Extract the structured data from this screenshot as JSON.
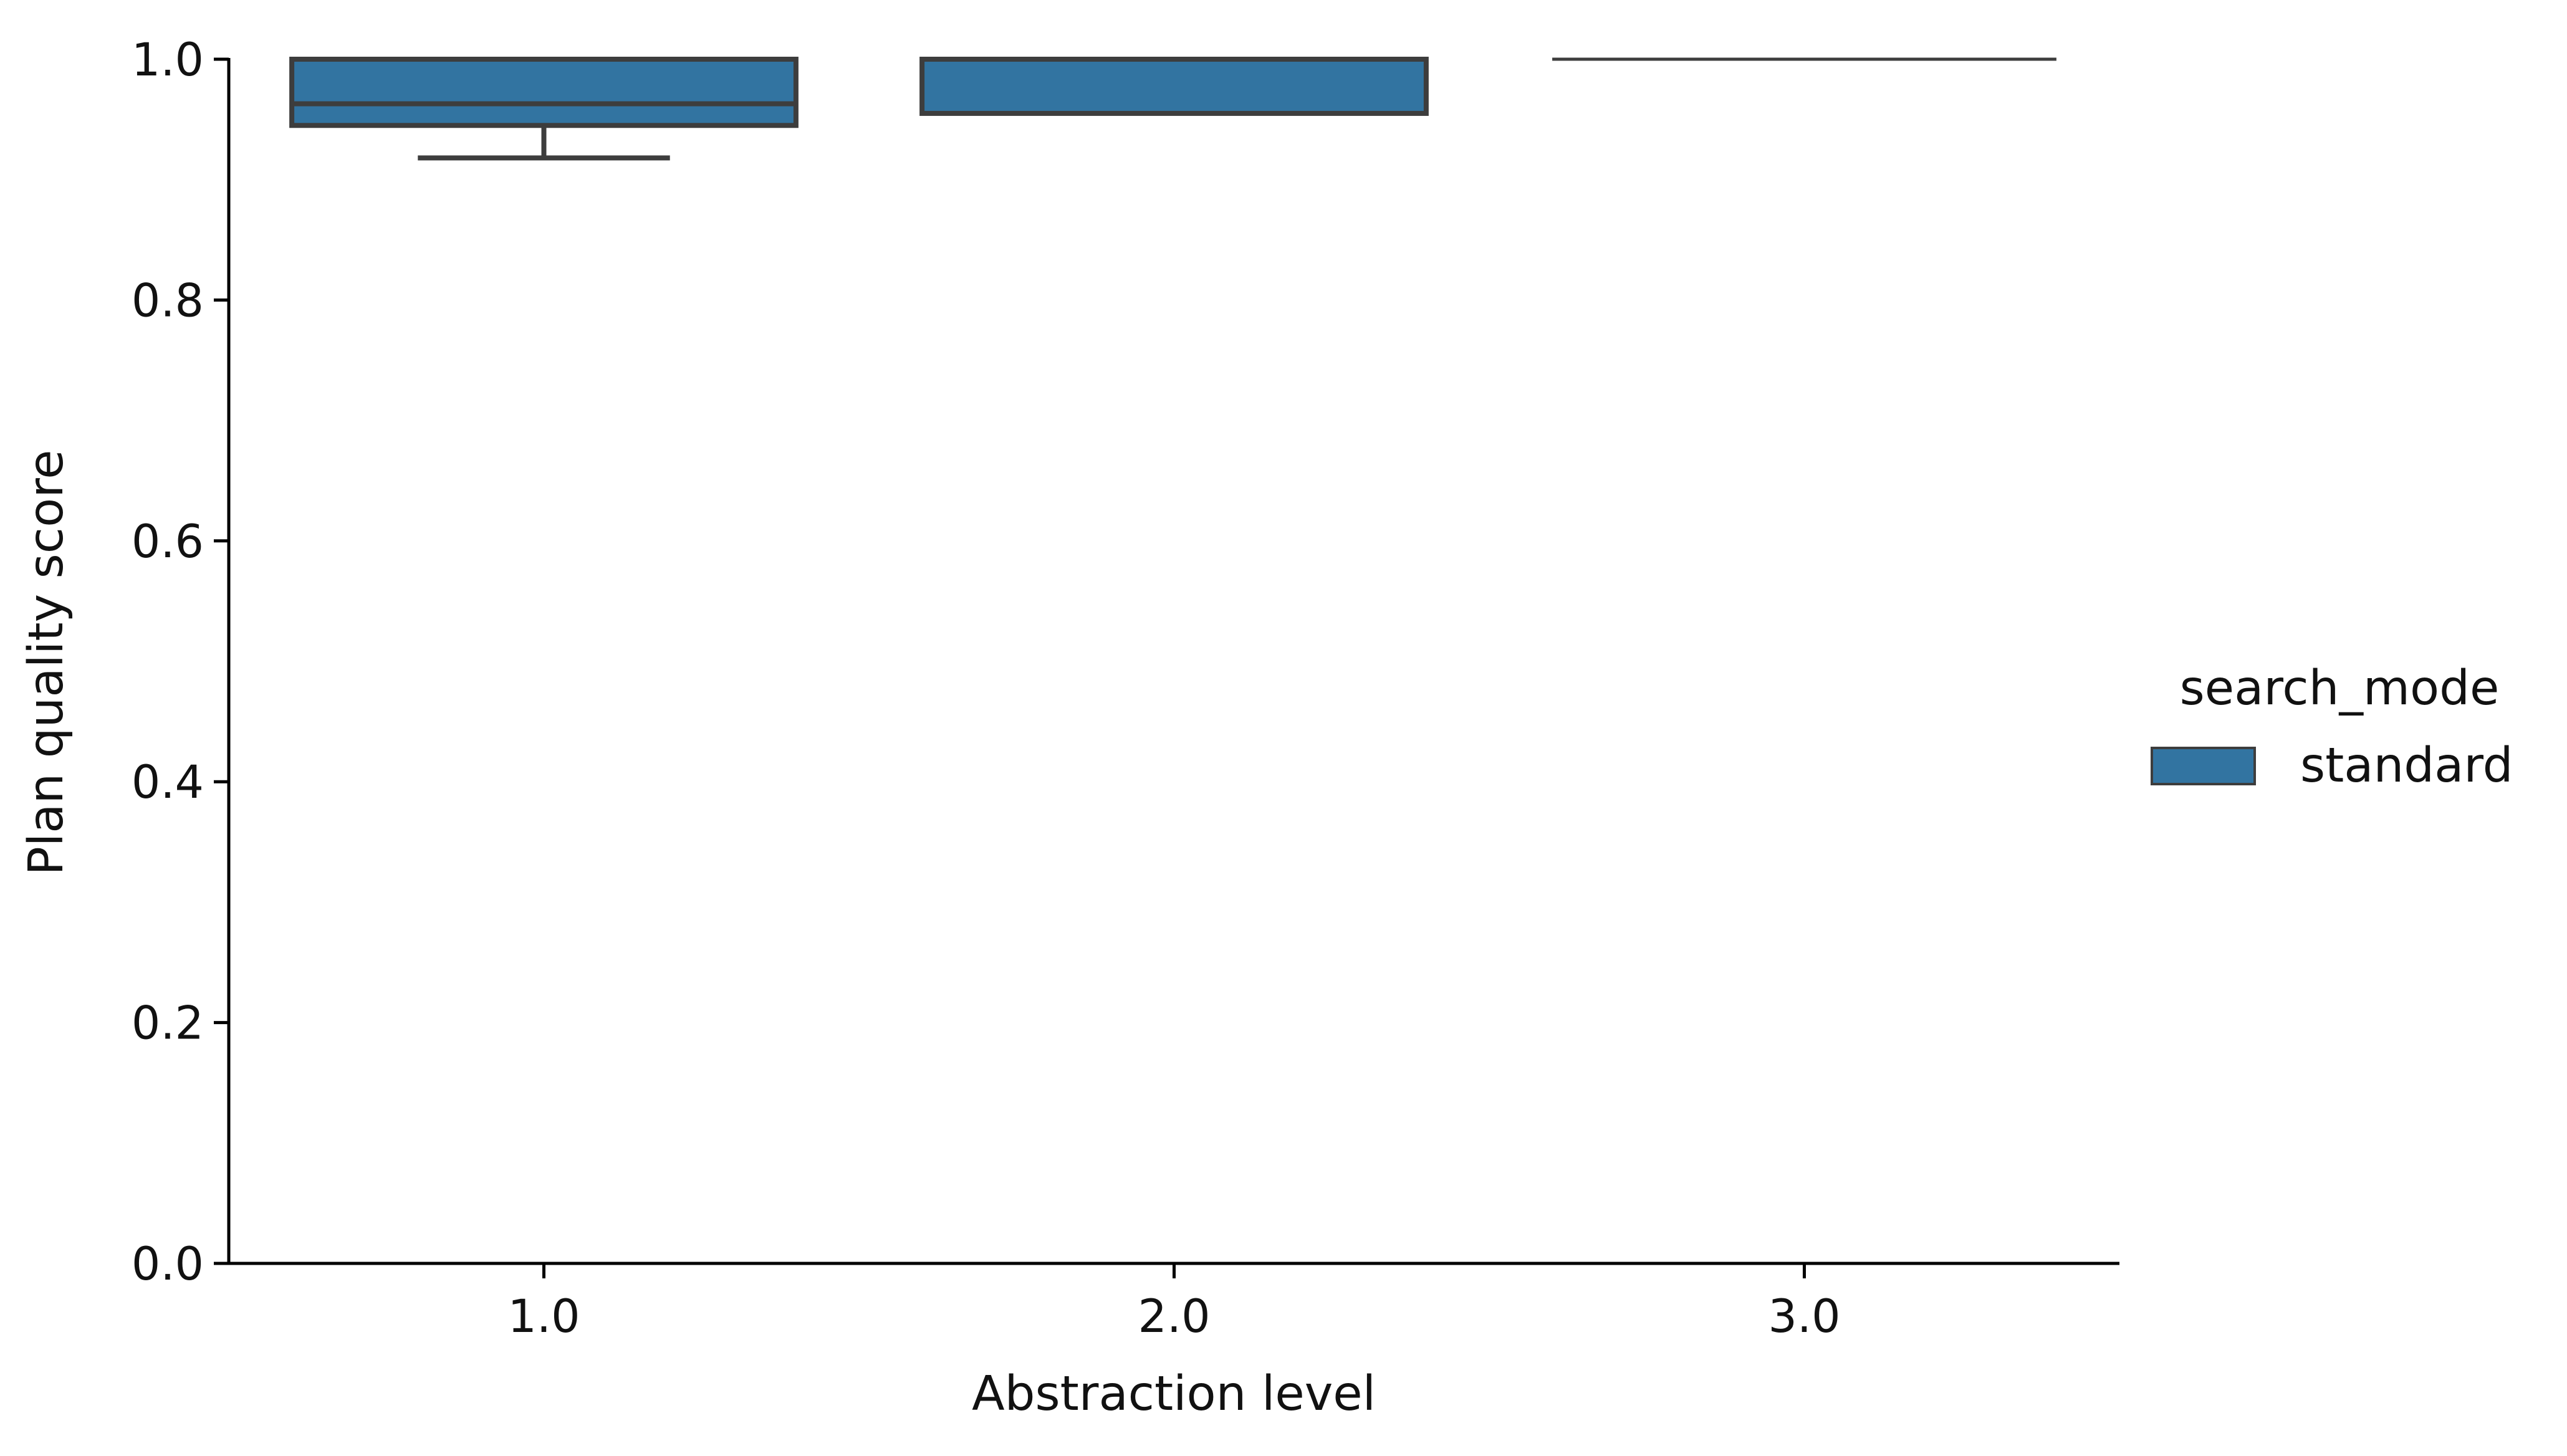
{
  "chart_data": {
    "type": "box",
    "title": "",
    "xlabel": "Abstraction level",
    "ylabel": "Plan quality score",
    "categories": [
      "1.0",
      "2.0",
      "3.0"
    ],
    "ylim": [
      0.0,
      1.0
    ],
    "yticks": [
      "0.0",
      "0.2",
      "0.4",
      "0.6",
      "0.8",
      "1.0"
    ],
    "grid": false,
    "legend": {
      "title": "search_mode",
      "placement": "right",
      "entries": [
        "standard"
      ]
    },
    "series": [
      {
        "name": "standard",
        "color": "#3274a1",
        "boxes": [
          {
            "category": "1.0",
            "whisker_low": 0.918,
            "q1": 0.945,
            "median": 0.963,
            "q3": 1.0,
            "whisker_high": 1.0
          },
          {
            "category": "2.0",
            "whisker_low": 0.955,
            "q1": 0.955,
            "median": 0.955,
            "q3": 1.0,
            "whisker_high": 1.0
          },
          {
            "category": "3.0",
            "whisker_low": 1.0,
            "q1": 1.0,
            "median": 1.0,
            "q3": 1.0,
            "whisker_high": 1.0
          }
        ]
      }
    ],
    "colors": {
      "box_fill": "#3274a1",
      "box_edge": "#3d3d3d",
      "axis": "#000000"
    }
  }
}
